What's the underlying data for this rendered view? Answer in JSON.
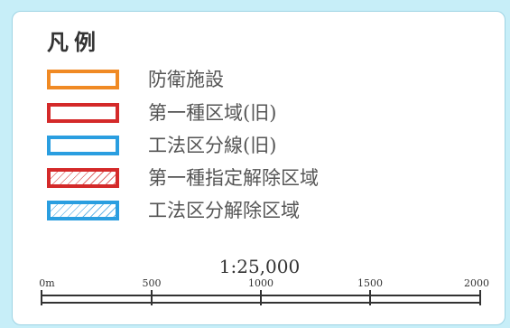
{
  "legend": {
    "title": "凡例",
    "items": [
      {
        "label": "防衛施設",
        "border_color": "#f08a24",
        "fill": "none"
      },
      {
        "label": "第一種区域(旧)",
        "border_color": "#d42a2a",
        "fill": "none"
      },
      {
        "label": "工法区分線(旧)",
        "border_color": "#2a9ee0",
        "fill": "none"
      },
      {
        "label": "第一種指定解除区域",
        "border_color": "#d42a2a",
        "fill": "hatched"
      },
      {
        "label": "工法区分解除区域",
        "border_color": "#2a9ee0",
        "fill": "hatched"
      }
    ]
  },
  "scale": {
    "ratio": "1:25,000",
    "ticks": [
      "0m",
      "500",
      "1000",
      "1500",
      "2000"
    ]
  },
  "colors": {
    "background": "#c7eef8",
    "panel": "#ffffff"
  }
}
